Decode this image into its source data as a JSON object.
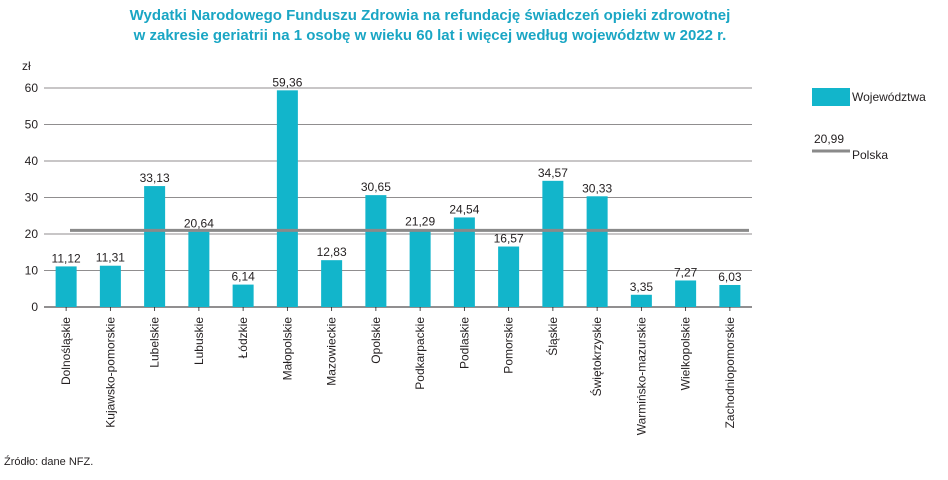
{
  "chart_data": {
    "type": "bar",
    "title": [
      "Wydatki Narodowego Funduszu Zdrowia na refundację świadczeń opieki zdrowotnej",
      "w zakresie geriatrii na 1 osobę w wieku 60 lat i więcej według województw w 2022 r."
    ],
    "ylabel": "zł",
    "ylim": [
      0,
      60
    ],
    "yticks": [
      "0",
      "10",
      "20",
      "30",
      "40",
      "50",
      "60"
    ],
    "grid": true,
    "legend_position": "right",
    "categories": [
      "Dolnośląskie",
      "Kujawsko-pomorskie",
      "Lubelskie",
      "Lubuskie",
      "Łódzkie",
      "Małopolskie",
      "Mazowieckie",
      "Opolskie",
      "Podkarpackie",
      "Podlaskie",
      "Pomorskie",
      "Śląskie",
      "Świętokrzyskie",
      "Warmińsko-mazurskie",
      "Wielkopolskie",
      "Zachodniopomorskie"
    ],
    "series": [
      {
        "name": "Województwa",
        "color": "#12b5cb",
        "values": [
          11.12,
          11.31,
          33.13,
          20.64,
          6.14,
          59.36,
          12.83,
          30.65,
          21.29,
          24.54,
          16.57,
          34.57,
          30.33,
          3.35,
          7.27,
          6.03
        ],
        "labels": [
          "11,12",
          "11,31",
          "33,13",
          "20,64",
          "6,14",
          "59,36",
          "12,83",
          "30,65",
          "21,29",
          "24,54",
          "16,57",
          "34,57",
          "30,33",
          "3,35",
          "7,27",
          "6,03"
        ]
      }
    ],
    "reference_line": {
      "name": "Polska",
      "value": 20.99,
      "label": "20,99",
      "color": "#8a8a8a"
    }
  },
  "source": "Źródło: dane NFZ."
}
